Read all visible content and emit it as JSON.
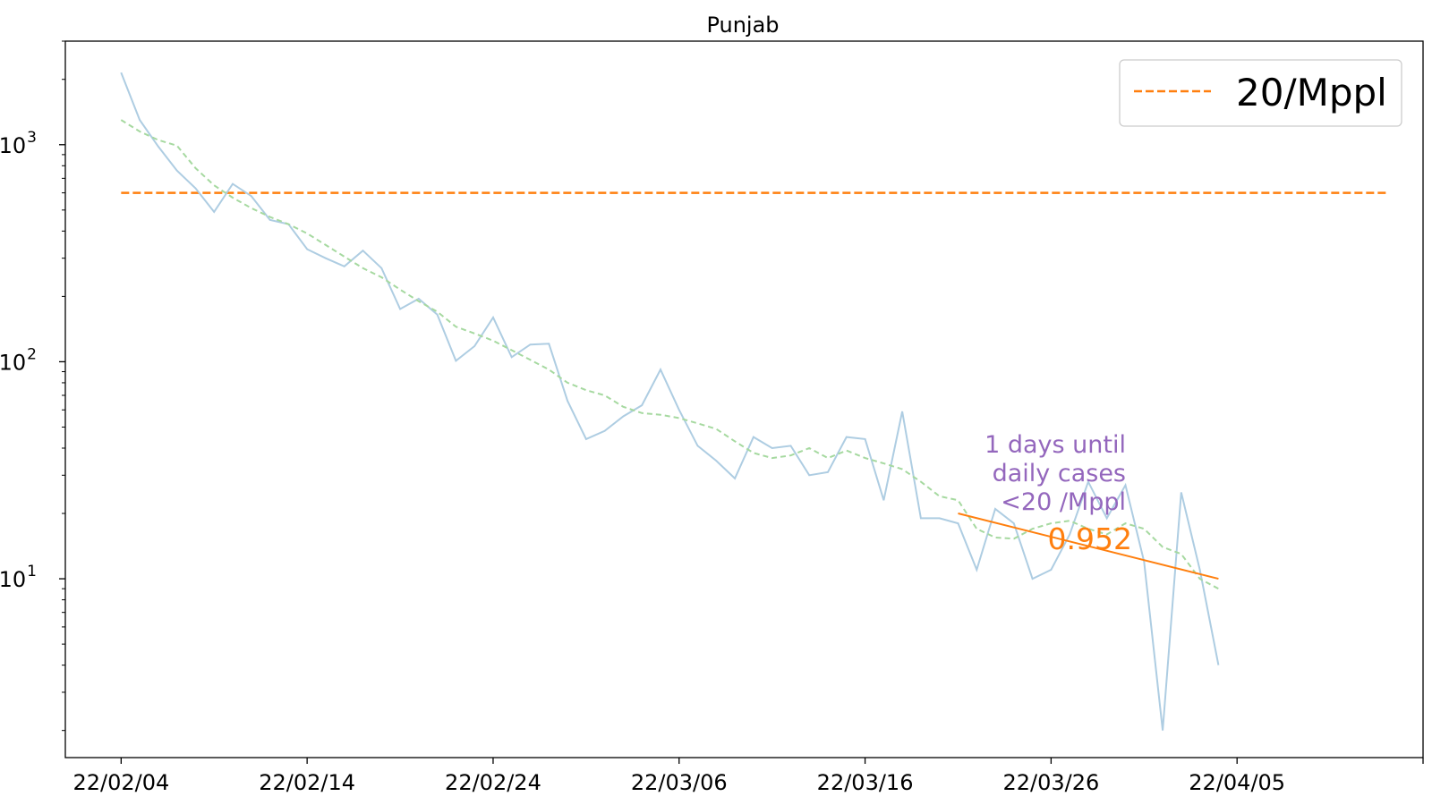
{
  "chart_data": {
    "type": "line",
    "title": "Punjab",
    "yscale": "log",
    "xlim": [
      "2022-02-01",
      "2022-04-15"
    ],
    "ylim": [
      1.5,
      3000
    ],
    "x_ticks": [
      {
        "date": "2022-02-04",
        "label": "22/02/04"
      },
      {
        "date": "2022-02-14",
        "label": "22/02/14"
      },
      {
        "date": "2022-02-24",
        "label": "22/02/24"
      },
      {
        "date": "2022-03-06",
        "label": "22/03/06"
      },
      {
        "date": "2022-03-16",
        "label": "22/03/16"
      },
      {
        "date": "2022-03-26",
        "label": "22/03/26"
      },
      {
        "date": "2022-04-05",
        "label": "22/04/05"
      },
      {
        "date": "2022-04-15",
        "label": ""
      }
    ],
    "y_ticks": [
      {
        "value": 10,
        "base": "10",
        "exp": "1"
      },
      {
        "value": 100,
        "base": "10",
        "exp": "2"
      },
      {
        "value": 1000,
        "base": "10",
        "exp": "3"
      }
    ],
    "series": [
      {
        "style": "solid",
        "color": "#aecde2",
        "x": [
          "2022-02-04",
          "2022-02-05",
          "2022-02-06",
          "2022-02-07",
          "2022-02-08",
          "2022-02-09",
          "2022-02-10",
          "2022-02-11",
          "2022-02-12",
          "2022-02-13",
          "2022-02-14",
          "2022-02-15",
          "2022-02-16",
          "2022-02-17",
          "2022-02-18",
          "2022-02-19",
          "2022-02-20",
          "2022-02-21",
          "2022-02-22",
          "2022-02-23",
          "2022-02-24",
          "2022-02-25",
          "2022-02-26",
          "2022-02-27",
          "2022-02-28",
          "2022-03-01",
          "2022-03-02",
          "2022-03-03",
          "2022-03-04",
          "2022-03-05",
          "2022-03-06",
          "2022-03-07",
          "2022-03-08",
          "2022-03-09",
          "2022-03-10",
          "2022-03-11",
          "2022-03-12",
          "2022-03-13",
          "2022-03-14",
          "2022-03-15",
          "2022-03-16",
          "2022-03-17",
          "2022-03-18",
          "2022-03-19",
          "2022-03-20",
          "2022-03-21",
          "2022-03-22",
          "2022-03-23",
          "2022-03-24",
          "2022-03-25",
          "2022-03-26",
          "2022-03-27",
          "2022-03-28",
          "2022-03-29",
          "2022-03-30",
          "2022-03-31",
          "2022-04-01",
          "2022-04-02",
          "2022-04-03",
          "2022-04-04"
        ],
        "values": [
          2150,
          1300,
          980,
          760,
          630,
          490,
          660,
          580,
          450,
          430,
          330,
          300,
          275,
          325,
          270,
          175,
          195,
          165,
          101,
          118,
          160,
          105,
          120,
          121,
          66,
          44,
          48,
          56,
          63,
          92,
          60,
          41,
          35,
          29,
          45,
          40,
          41,
          30,
          31,
          45,
          44,
          23,
          59,
          19,
          19,
          18,
          11,
          21,
          18,
          10,
          11,
          16,
          28,
          19,
          27,
          12,
          2,
          25,
          11,
          4
        ]
      },
      {
        "style": "dashed",
        "color": "#a6d9a0",
        "x": [
          "2022-02-04",
          "2022-02-05",
          "2022-02-06",
          "2022-02-07",
          "2022-02-08",
          "2022-02-09",
          "2022-02-10",
          "2022-02-11",
          "2022-02-12",
          "2022-02-13",
          "2022-02-14",
          "2022-02-15",
          "2022-02-16",
          "2022-02-17",
          "2022-02-18",
          "2022-02-19",
          "2022-02-20",
          "2022-02-21",
          "2022-02-22",
          "2022-02-23",
          "2022-02-24",
          "2022-02-25",
          "2022-02-26",
          "2022-02-27",
          "2022-02-28",
          "2022-03-01",
          "2022-03-02",
          "2022-03-03",
          "2022-03-04",
          "2022-03-05",
          "2022-03-06",
          "2022-03-07",
          "2022-03-08",
          "2022-03-09",
          "2022-03-10",
          "2022-03-11",
          "2022-03-12",
          "2022-03-13",
          "2022-03-14",
          "2022-03-15",
          "2022-03-16",
          "2022-03-17",
          "2022-03-18",
          "2022-03-19",
          "2022-03-20",
          "2022-03-21",
          "2022-03-22",
          "2022-03-23",
          "2022-03-24",
          "2022-03-25",
          "2022-03-26",
          "2022-03-27",
          "2022-03-28",
          "2022-03-29",
          "2022-03-30",
          "2022-03-31",
          "2022-04-01",
          "2022-04-02",
          "2022-04-03",
          "2022-04-04"
        ],
        "values": [
          1300,
          1150,
          1050,
          990,
          780,
          650,
          570,
          510,
          465,
          430,
          390,
          345,
          305,
          270,
          245,
          215,
          190,
          170,
          145,
          135,
          125,
          113,
          102,
          92,
          80,
          74,
          70,
          62,
          58,
          57,
          55,
          52,
          49,
          43,
          38,
          36,
          37,
          40,
          36,
          39,
          36,
          34,
          32,
          28,
          24,
          23,
          17,
          15.5,
          15.3,
          17,
          18,
          18.5,
          17,
          16,
          18,
          17,
          14,
          13,
          10,
          9
        ]
      }
    ],
    "threshold": {
      "value": 600,
      "x_start": "2022-02-04",
      "x_end": "2022-04-13",
      "color": "#ff7f0e",
      "label": "20/Mppl"
    },
    "trend": {
      "x_start": "2022-03-21",
      "y_start": 20,
      "x_end": "2022-04-04",
      "y_end": 10,
      "color": "#ff7f0e"
    },
    "annotation": {
      "lines": [
        "1 days until",
        "daily cases",
        "<20 /Mppl"
      ],
      "color": "#9467bd",
      "rate": "0.952",
      "rate_color": "#ff7f0e"
    },
    "legend_position": "top-right",
    "grid": false
  }
}
